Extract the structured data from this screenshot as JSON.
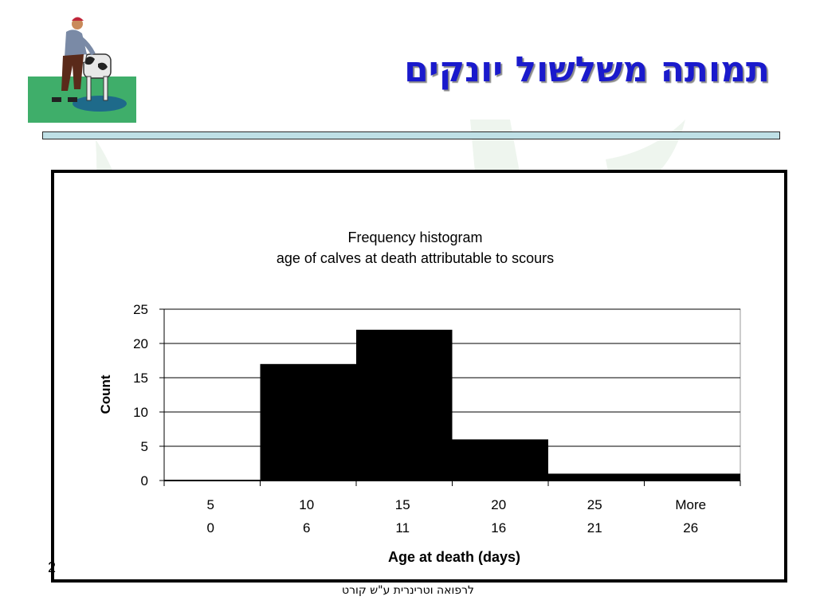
{
  "slide": {
    "title": "תמותה משלשול יונקים",
    "footer": "לרפואה וטרינרית ע\"ש קורט",
    "slide_number": "2"
  },
  "icons": [
    "farmer-with-calf-icon"
  ],
  "chart_data": {
    "type": "bar",
    "title": "Frequency histogram",
    "subtitle": "age of calves at death attributable to scours",
    "xlabel": "Age at death (days)",
    "ylabel": "Count",
    "ylim": [
      0,
      25
    ],
    "yticks": [
      0,
      5,
      10,
      15,
      20,
      25
    ],
    "categories": [
      "5",
      "10",
      "15",
      "20",
      "25",
      "More"
    ],
    "categories_secondary": [
      "0",
      "6",
      "11",
      "16",
      "21",
      "26"
    ],
    "values": [
      0,
      17,
      22,
      6,
      1,
      1
    ],
    "grid": true,
    "bar_color": "#000000"
  }
}
